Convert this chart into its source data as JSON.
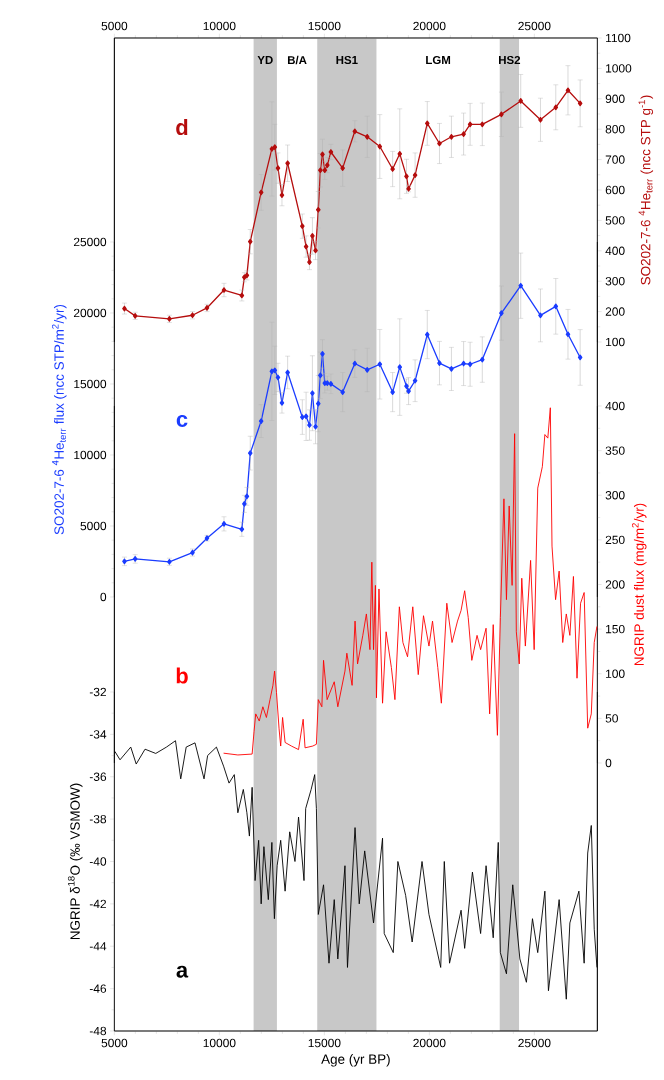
{
  "chart_data": [
    {
      "type": "line",
      "ylabel": "SO202-7-6 $^{4}$He$_{terr}$ (ncc STP g$^{-1}$)",
      "xlim": [
        5000,
        28000
      ],
      "x2lim": [
        5000,
        28000
      ],
      "x2ticks": [
        5000,
        10000,
        15000,
        20000,
        25000
      ],
      "ylim": [
        100,
        1100
      ],
      "yticks": [
        100,
        200,
        300,
        400,
        500,
        600,
        700,
        800,
        900,
        1000,
        1100
      ],
      "bands": [
        {
          "axis": "x",
          "from": 11630,
          "to": 12740,
          "label": "YD",
          "color": "#c8c8c8"
        },
        {
          "axis": "x",
          "from": 14660,
          "to": 17480,
          "label": "HS1",
          "color": "#c8c8c8"
        },
        {
          "axis": "x",
          "from": 23350,
          "to": 24270,
          "label": "HS2",
          "color": "#c8c8c8"
        }
      ],
      "annotations": [
        "B/A",
        "LGM"
      ],
      "series": [
        {
          "name": "d",
          "color": "#b50d0d",
          "marker": "diamond",
          "x": [
            5480,
            5990,
            7620,
            8720,
            9410,
            10220,
            11070,
            11190,
            11310,
            11470,
            11990,
            12500,
            12640,
            12790,
            12980,
            13250,
            13950,
            14130,
            14290,
            14430,
            14580,
            14710,
            14810,
            14910,
            15020,
            15140,
            15310,
            15870,
            16450,
            17040,
            17640,
            18250,
            18590,
            18910,
            19010,
            19320,
            19900,
            20480,
            21050,
            21630,
            21940,
            22520,
            23430,
            24350,
            25290,
            26020,
            26600,
            27180
          ],
          "values": [
            210,
            186,
            176,
            188,
            212,
            271,
            253,
            313,
            319,
            430,
            592,
            735,
            741,
            672,
            583,
            688,
            481,
            414,
            363,
            449,
            401,
            535,
            665,
            717,
            665,
            682,
            725,
            672,
            793,
            775,
            743,
            669,
            719,
            645,
            604,
            649,
            819,
            753,
            775,
            784,
            816,
            816,
            849,
            893,
            831,
            872,
            928,
            885
          ],
          "errors": [
            18,
            12,
            12,
            12,
            12,
            22,
            18,
            15,
            15,
            40,
            59,
            155,
            75,
            50,
            35,
            60,
            40,
            35,
            25,
            60,
            30,
            60,
            55,
            50,
            30,
            25,
            25,
            60,
            35,
            68,
            105,
            58,
            148,
            56,
            10,
            73,
            72,
            66,
            68,
            69,
            69,
            70,
            73,
            87,
            71,
            74,
            81,
            77
          ]
        }
      ]
    },
    {
      "type": "line",
      "ylabel": "SO202-7-6 $^{4}$He$_{terr}$ flux (ncc STP/m$^{2}$/yr)",
      "xlim": [
        5000,
        28000
      ],
      "tick_labels": "y",
      "ylim": [
        0,
        25000
      ],
      "yticks": [
        0,
        5000,
        10000,
        15000,
        20000,
        25000
      ],
      "series": [
        {
          "name": "c",
          "color": "#1a3cff",
          "marker": "diamond",
          "x": [
            5480,
            5990,
            7620,
            8720,
            9410,
            10220,
            11070,
            11190,
            11310,
            11470,
            11990,
            12500,
            12640,
            12790,
            12980,
            13250,
            13950,
            14130,
            14290,
            14430,
            14580,
            14710,
            14810,
            14910,
            15020,
            15140,
            15310,
            15870,
            16450,
            17040,
            17640,
            18250,
            18590,
            18910,
            19010,
            19320,
            19900,
            20480,
            21050,
            21630,
            21940,
            22520,
            23430,
            24350,
            25290,
            26020,
            26600,
            27180
          ],
          "values": [
            2510,
            2680,
            2480,
            3130,
            4140,
            5150,
            4770,
            6560,
            7090,
            10130,
            12390,
            15890,
            15960,
            15460,
            13670,
            15810,
            12670,
            12720,
            12110,
            14350,
            11990,
            13620,
            15610,
            17120,
            15060,
            15060,
            15010,
            14430,
            16440,
            15990,
            16390,
            14430,
            16190,
            14850,
            14500,
            15230,
            18480,
            16470,
            16060,
            16440,
            16390,
            16720,
            19990,
            21920,
            19830,
            20470,
            18500,
            16870
          ],
          "errors": [
            300,
            300,
            250,
            250,
            200,
            500,
            500,
            600,
            630,
            1190,
            1160,
            3460,
            1700,
            1000,
            720,
            1150,
            1220,
            1700,
            1070,
            2640,
            1200,
            1980,
            1640,
            1000,
            690,
            500,
            690,
            1380,
            970,
            1530,
            2450,
            1380,
            3400,
            500,
            950,
            1470,
            1700,
            1530,
            1520,
            1550,
            1550,
            1600,
            1910,
            2300,
            1860,
            1960,
            1750,
            1960
          ]
        }
      ]
    },
    {
      "type": "line",
      "ylabel": "NGRIP dust flux (mg/m$^{2}$/yr)",
      "xlim": [
        5000,
        28000
      ],
      "tick_labels": "y",
      "ylim": [
        0,
        400
      ],
      "yticks": [
        0,
        50,
        100,
        150,
        200,
        250,
        300,
        350,
        400
      ],
      "series": [
        {
          "name": "b",
          "color": "#ff0000",
          "marker": "none",
          "x": [
            10200,
            10880,
            11560,
            11650,
            11730,
            11900,
            12070,
            12240,
            12410,
            12550,
            12630,
            12720,
            12840,
            12920,
            13010,
            13130,
            13430,
            13770,
            13990,
            14080,
            14450,
            14620,
            14710,
            14880,
            14960,
            15130,
            15470,
            15640,
            15980,
            16070,
            16320,
            16460,
            16580,
            16830,
            17000,
            17170,
            17260,
            17340,
            17430,
            17480,
            17600,
            17770,
            17940,
            18190,
            18360,
            18570,
            18740,
            18960,
            19210,
            19470,
            19720,
            19980,
            20150,
            20400,
            20570,
            20830,
            21080,
            21340,
            21510,
            21680,
            21850,
            22020,
            22270,
            22440,
            22700,
            22870,
            23040,
            23240,
            23380,
            23550,
            23670,
            23800,
            23940,
            24060,
            24140,
            24280,
            24400,
            24570,
            24820,
            24990,
            25160,
            25380,
            25500,
            25640,
            25760,
            25840,
            26010,
            26180,
            26350,
            26520,
            26690,
            26860,
            27030,
            27200,
            27370,
            27540,
            27710,
            27850,
            27980
          ],
          "values": [
            11,
            9,
            10,
            35,
            55,
            47,
            63,
            51,
            71,
            87,
            103,
            79,
            39,
            19,
            51,
            23,
            19,
            15,
            49,
            17,
            19,
            21,
            71,
            63,
            115,
            71,
            91,
            63,
            103,
            123,
            87,
            159,
            111,
            143,
            167,
            127,
            225,
            127,
            199,
            73,
            195,
            67,
            147,
            107,
            71,
            175,
            135,
            119,
            175,
            99,
            165,
            131,
            159,
            107,
            67,
            179,
            135,
            159,
            171,
            193,
            163,
            115,
            143,
            127,
            151,
            55,
            155,
            31,
            163,
            296,
            183,
            288,
            199,
            369,
            147,
            111,
            207,
            131,
            227,
            127,
            308,
            332,
            368,
            364,
            398,
            243,
            183,
            215,
            135,
            167,
            143,
            209,
            95,
            179,
            191,
            39,
            55,
            135,
            153
          ]
        }
      ]
    },
    {
      "type": "line",
      "xlabel": "Age (yr BP)",
      "ylabel": "NGRIP δ$^{18}$O (‰ VSMOW)",
      "xlim": [
        5000,
        28000
      ],
      "xticks": [
        5000,
        10000,
        15000,
        20000,
        25000
      ],
      "ylim": [
        -48,
        -32
      ],
      "yticks": [
        -48,
        -46,
        -44,
        -42,
        -40,
        -38,
        -36,
        -34,
        -32
      ],
      "series": [
        {
          "name": "a",
          "color": "#000000",
          "marker": "none",
          "x": [
            5020,
            5270,
            5780,
            6040,
            6460,
            6970,
            7480,
            7910,
            8160,
            8420,
            8840,
            9270,
            9440,
            9860,
            10200,
            10460,
            10710,
            10880,
            11140,
            11310,
            11430,
            11560,
            11700,
            11870,
            11990,
            12120,
            12330,
            12500,
            12620,
            12750,
            12920,
            13130,
            13350,
            13600,
            13770,
            14030,
            14110,
            14370,
            14540,
            14620,
            14710,
            14960,
            15220,
            15470,
            15640,
            15980,
            16100,
            16460,
            16660,
            16920,
            17340,
            17770,
            17850,
            18280,
            18500,
            18870,
            19180,
            19650,
            19980,
            20540,
            20710,
            20960,
            21510,
            21680,
            22050,
            22440,
            22700,
            23040,
            23280,
            23380,
            23670,
            23970,
            24310,
            24620,
            24910,
            25160,
            25500,
            25670,
            26180,
            26520,
            26690,
            27120,
            27370,
            27540,
            27710,
            27850,
            27980
          ],
          "values": [
            -34.8,
            -35.2,
            -34.6,
            -35.4,
            -34.7,
            -34.9,
            -34.6,
            -34.3,
            -36.1,
            -34.6,
            -34.4,
            -36.1,
            -35.0,
            -34.6,
            -35.5,
            -36.3,
            -35.9,
            -37.7,
            -36.6,
            -37.7,
            -38.8,
            -36.5,
            -40.9,
            -39.0,
            -42.0,
            -39.3,
            -41.8,
            -39.1,
            -42.7,
            -40.2,
            -39.0,
            -41.4,
            -38.6,
            -40.0,
            -37.9,
            -40.9,
            -37.5,
            -36.6,
            -35.9,
            -37.5,
            -42.5,
            -41.1,
            -44.8,
            -41.8,
            -44.6,
            -40.2,
            -45.0,
            -38.4,
            -42.0,
            -39.5,
            -42.9,
            -38.9,
            -43.4,
            -44.3,
            -40.0,
            -41.6,
            -43.8,
            -40.0,
            -42.5,
            -45.0,
            -40.0,
            -44.8,
            -42.3,
            -44.1,
            -40.5,
            -43.4,
            -40.2,
            -43.6,
            -39.1,
            -44.3,
            -45.3,
            -41.1,
            -44.6,
            -45.7,
            -42.7,
            -44.3,
            -41.4,
            -46.1,
            -41.8,
            -46.5,
            -42.9,
            -41.4,
            -44.8,
            -39.6,
            -38.3,
            -43.2,
            -45.0
          ]
        }
      ]
    }
  ]
}
